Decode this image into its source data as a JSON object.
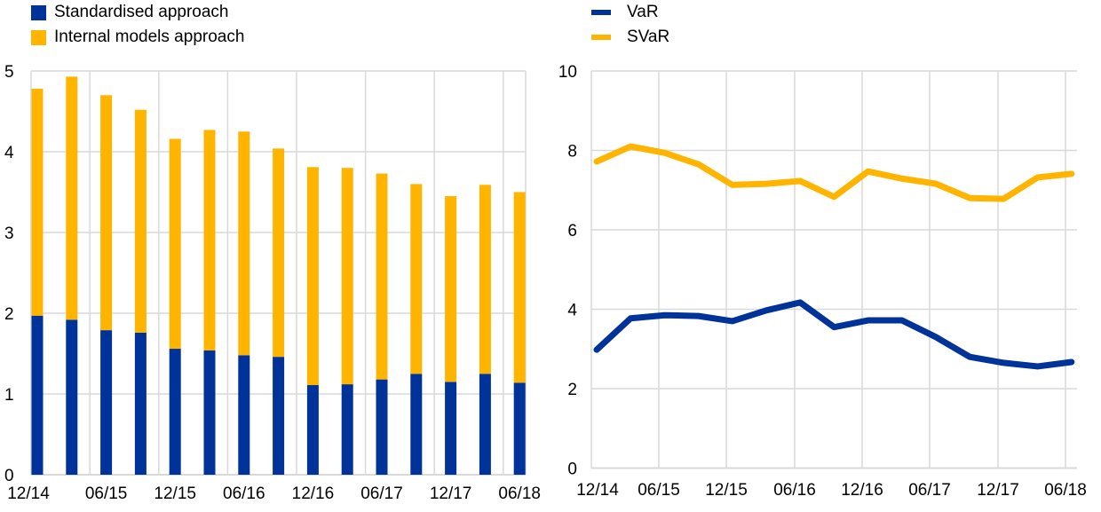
{
  "colors": {
    "standardised": "#003399",
    "internal": "#FFB400",
    "var": "#003399",
    "svar": "#FFB400",
    "grid": "#D9D9D9"
  },
  "chart_data": [
    {
      "type": "bar",
      "stacked": true,
      "title": "",
      "xlabel": "",
      "ylabel": "",
      "ylim": [
        0,
        5
      ],
      "yticks": [
        "0",
        "1",
        "2",
        "3",
        "4",
        "5"
      ],
      "grid": true,
      "legend_position": "top-left",
      "categories": [
        "12/14",
        "03/15",
        "06/15",
        "09/15",
        "12/15",
        "03/16",
        "06/16",
        "09/16",
        "12/16",
        "03/17",
        "06/17",
        "09/17",
        "12/17",
        "03/18",
        "06/18"
      ],
      "xtick_labels": [
        "12/14",
        "06/15",
        "12/15",
        "06/16",
        "12/16",
        "06/17",
        "12/17",
        "06/18"
      ],
      "series": [
        {
          "name": "Standardised approach",
          "values": [
            1.97,
            1.92,
            1.79,
            1.76,
            1.56,
            1.54,
            1.48,
            1.46,
            1.11,
            1.12,
            1.18,
            1.25,
            1.15,
            1.25,
            1.14
          ]
        },
        {
          "name": "Internal models approach",
          "values": [
            2.81,
            3.01,
            2.91,
            2.76,
            2.6,
            2.73,
            2.77,
            2.58,
            2.7,
            2.68,
            2.55,
            2.35,
            2.3,
            2.34,
            2.36
          ]
        }
      ]
    },
    {
      "type": "line",
      "title": "",
      "xlabel": "",
      "ylabel": "",
      "ylim": [
        0,
        10
      ],
      "yticks": [
        "0",
        "2",
        "4",
        "6",
        "8",
        "10"
      ],
      "grid": true,
      "legend_position": "top-left",
      "categories": [
        "12/14",
        "03/15",
        "06/15",
        "09/15",
        "12/15",
        "03/16",
        "06/16",
        "09/16",
        "12/16",
        "03/17",
        "06/17",
        "09/17",
        "12/17",
        "03/18",
        "06/18"
      ],
      "xtick_labels": [
        "12/14",
        "06/15",
        "12/15",
        "06/16",
        "12/16",
        "06/17",
        "12/17",
        "06/18"
      ],
      "series": [
        {
          "name": "VaR",
          "values": [
            2.98,
            3.77,
            3.85,
            3.83,
            3.7,
            3.97,
            4.17,
            3.55,
            3.72,
            3.72,
            3.3,
            2.8,
            2.65,
            2.56,
            2.67
          ]
        },
        {
          "name": "SVaR",
          "values": [
            7.72,
            8.1,
            7.94,
            7.65,
            7.13,
            7.16,
            7.23,
            6.83,
            7.47,
            7.29,
            7.16,
            6.8,
            6.78,
            7.32,
            7.41
          ]
        }
      ]
    }
  ]
}
